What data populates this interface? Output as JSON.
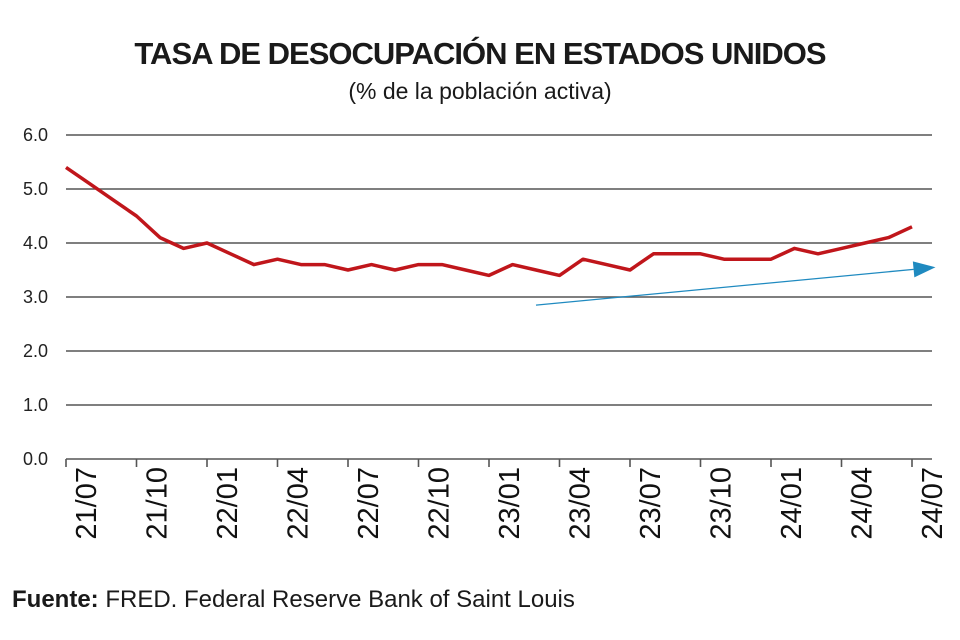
{
  "chart_data": {
    "type": "line",
    "title": "TASA DE DESOCUPACIÓN EN ESTADOS UNIDOS",
    "subtitle": "(% de la población activa)",
    "xlabel": "",
    "ylabel": "",
    "ylim": [
      0,
      6
    ],
    "yticks": [
      "0.0",
      "1.0",
      "2.0",
      "3.0",
      "4.0",
      "5.0",
      "6.0"
    ],
    "xticks": [
      "21/07",
      "21/10",
      "22/01",
      "22/04",
      "22/07",
      "22/10",
      "23/01",
      "23/04",
      "23/07",
      "23/10",
      "24/01",
      "24/04",
      "24/07"
    ],
    "grid": "horizontal",
    "x": [
      "21/07",
      "21/08",
      "21/09",
      "21/10",
      "21/11",
      "21/12",
      "22/01",
      "22/02",
      "22/03",
      "22/04",
      "22/05",
      "22/06",
      "22/07",
      "22/08",
      "22/09",
      "22/10",
      "22/11",
      "22/12",
      "23/01",
      "23/02",
      "23/03",
      "23/04",
      "23/05",
      "23/06",
      "23/07",
      "23/08",
      "23/09",
      "23/10",
      "23/11",
      "23/12",
      "24/01",
      "24/02",
      "24/03",
      "24/04",
      "24/05",
      "24/06",
      "24/07"
    ],
    "series": [
      {
        "color": "#c0161b",
        "values": [
          5.4,
          5.1,
          4.8,
          4.5,
          4.1,
          3.9,
          4.0,
          3.8,
          3.6,
          3.7,
          3.6,
          3.6,
          3.5,
          3.6,
          3.5,
          3.6,
          3.6,
          3.5,
          3.4,
          3.6,
          3.5,
          3.4,
          3.7,
          3.6,
          3.5,
          3.8,
          3.8,
          3.8,
          3.7,
          3.7,
          3.7,
          3.9,
          3.8,
          3.9,
          4.0,
          4.1,
          4.3
        ]
      }
    ],
    "trend_arrow": {
      "color": "#1f8ac0",
      "start": {
        "x": "23/03",
        "y": 2.85
      },
      "end": {
        "x": "24/08",
        "y": 3.55
      }
    }
  },
  "source": {
    "label": "Fuente:",
    "text": " FRED. Federal Reserve Bank of Saint Louis"
  }
}
